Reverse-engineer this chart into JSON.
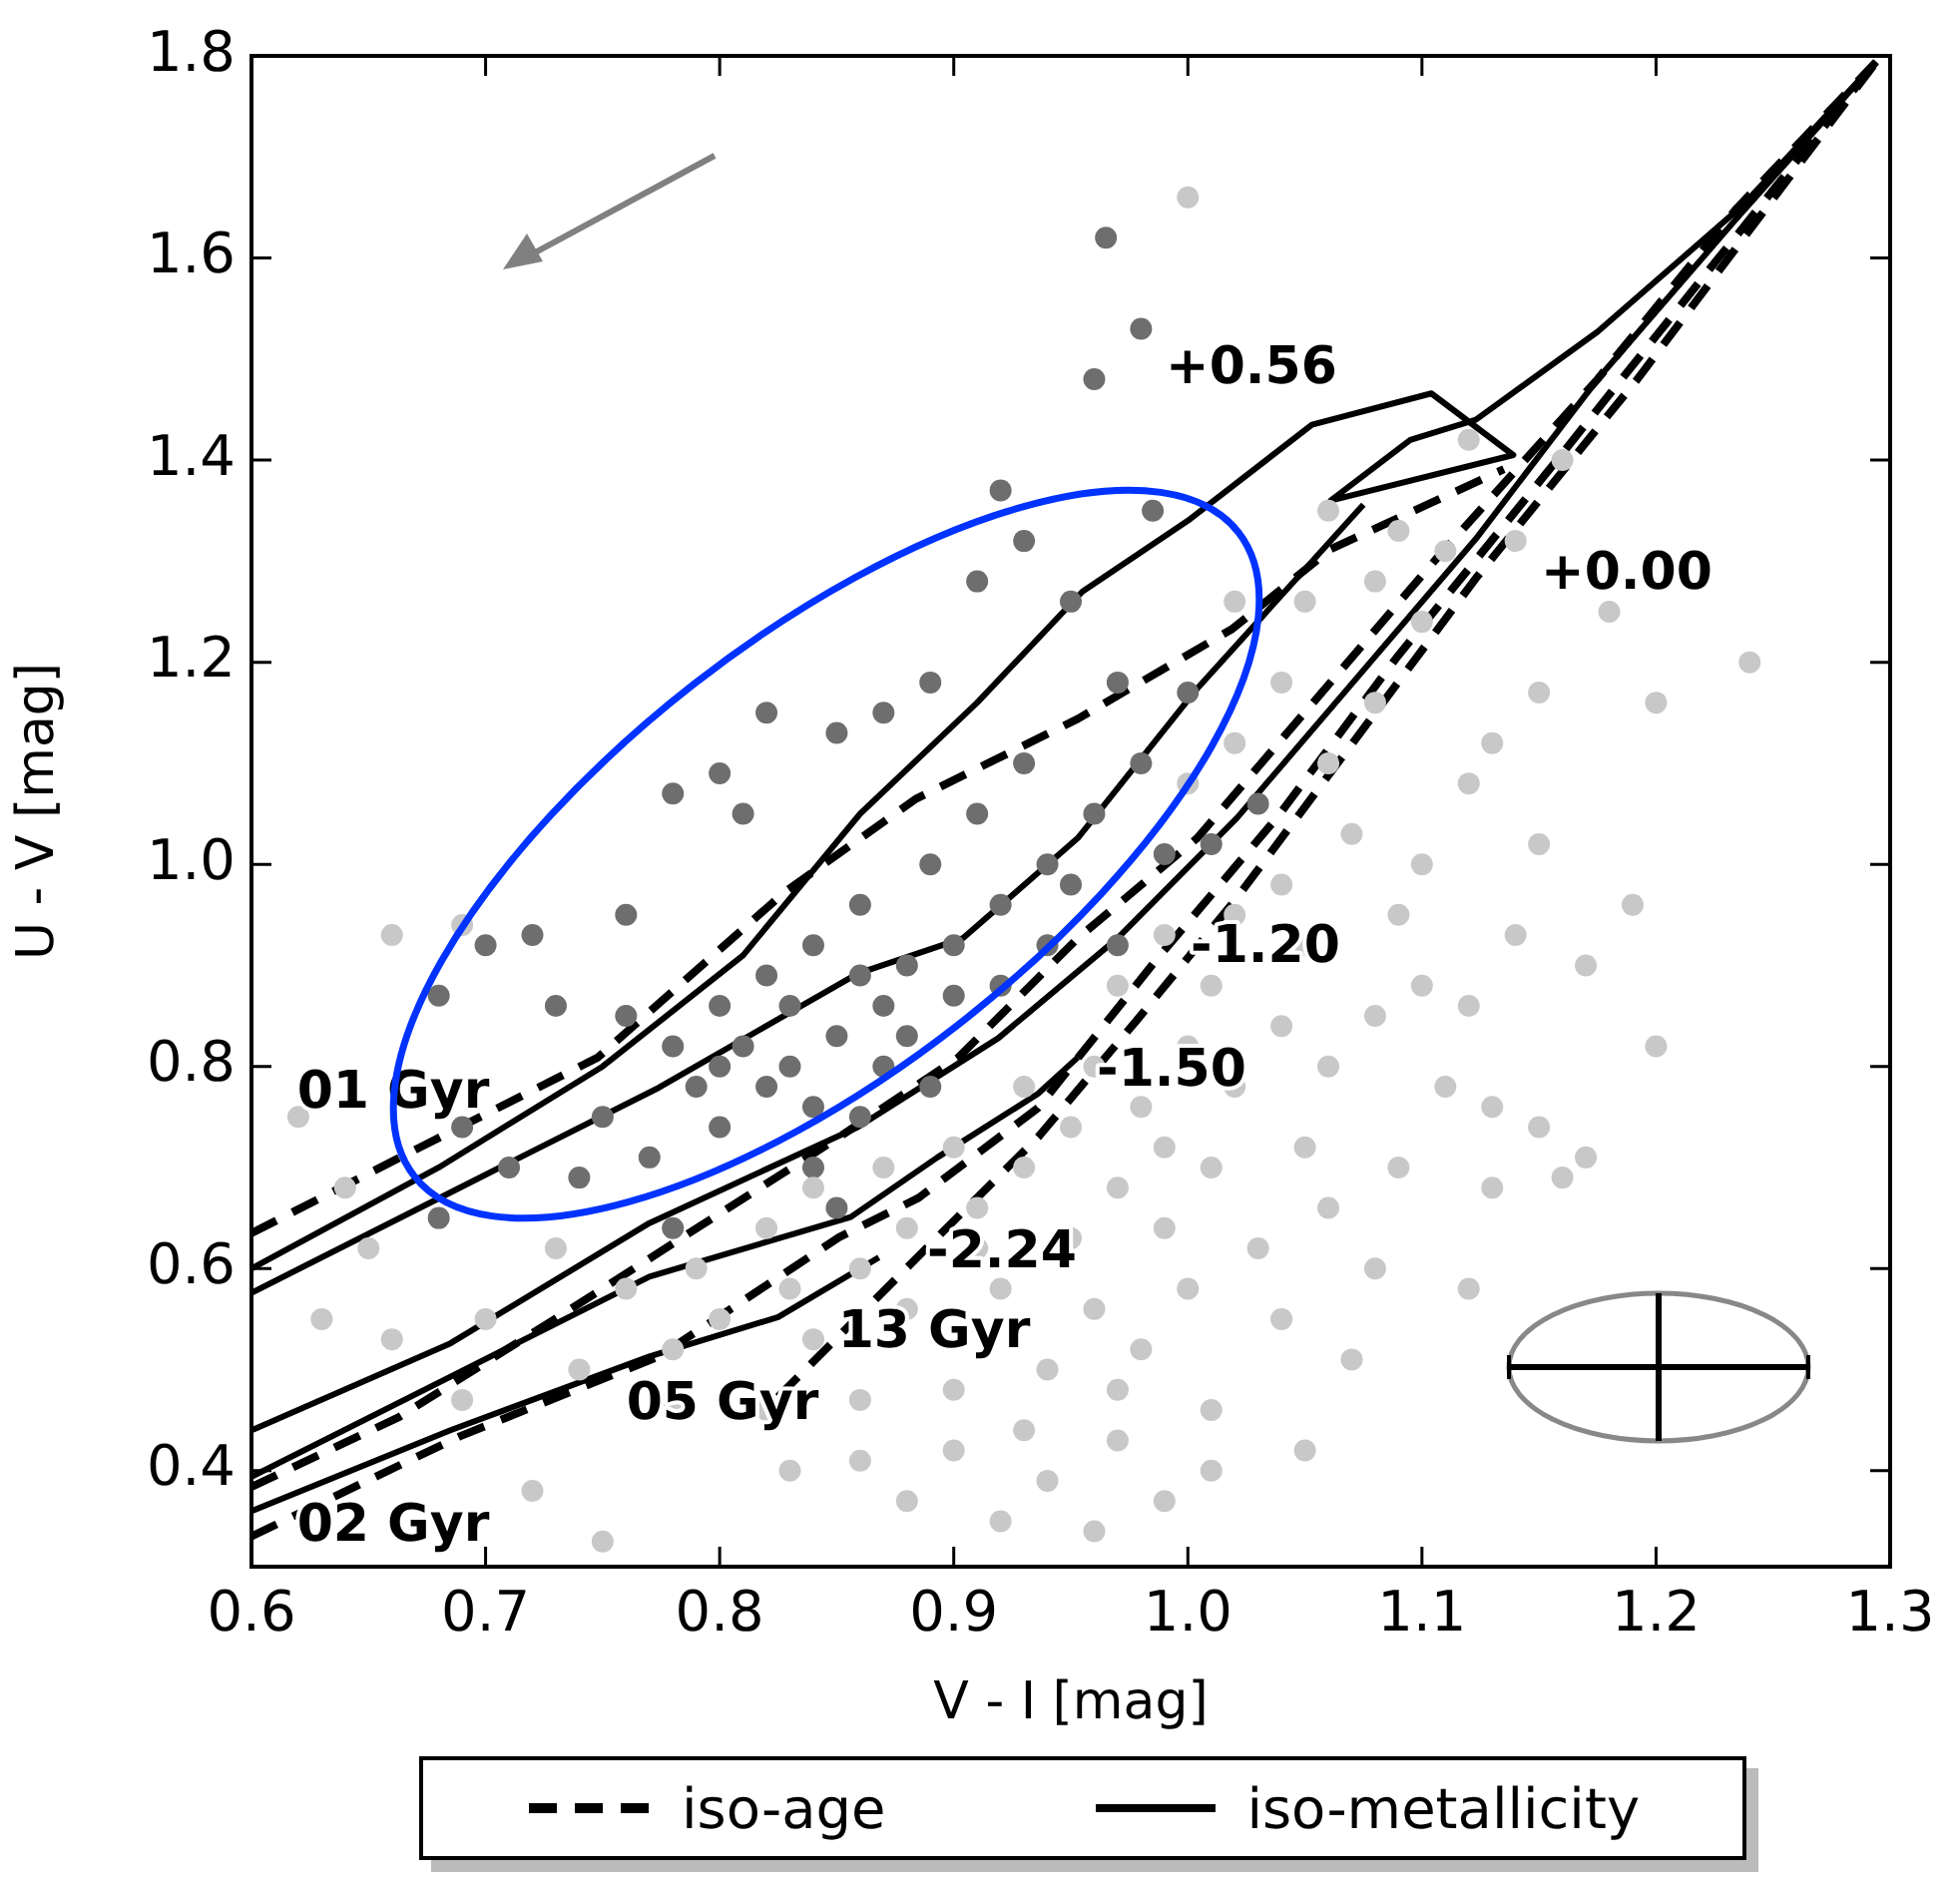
{
  "chart_data": {
    "type": "scatter",
    "xlabel": "V - I [mag]",
    "ylabel": "U - V [mag]",
    "xlim": [
      0.6,
      1.3
    ],
    "ylim": [
      0.305,
      1.8
    ],
    "xticks": [
      0.6,
      0.7,
      0.8,
      0.9,
      {
        "value": 1,
        "label": "1.0"
      },
      1.1,
      1.2,
      1.3
    ],
    "yticks": [
      0.4,
      0.6,
      0.8,
      {
        "value": 1,
        "label": "1.0"
      },
      1.2,
      1.4,
      1.6,
      1.8
    ],
    "grid": false,
    "legend": "bottom",
    "series": [
      {
        "color": "#c8c8c8",
        "marker": "circle",
        "x": [
          1.0,
          1.12,
          1.06,
          1.09,
          1.16,
          1.11,
          1.14,
          1.08,
          1.05,
          1.02,
          1.1,
          1.18,
          1.24,
          1.2,
          1.15,
          1.13,
          1.08,
          1.04,
          1.06,
          1.02,
          1.0,
          1.12,
          1.15,
          1.1,
          1.07,
          1.04,
          1.02,
          0.99,
          0.97,
          1.01,
          1.05,
          1.09,
          1.14,
          1.17,
          1.19,
          1.12,
          1.08,
          1.04,
          1.0,
          0.96,
          0.93,
          0.95,
          0.98,
          1.02,
          1.06,
          1.11,
          1.15,
          1.2,
          1.17,
          1.13,
          1.09,
          1.05,
          1.01,
          0.97,
          0.93,
          0.9,
          0.87,
          0.84,
          0.82,
          0.88,
          0.91,
          0.95,
          0.99,
          1.03,
          1.08,
          1.12,
          0.86,
          0.83,
          0.79,
          0.76,
          0.73,
          0.8,
          0.84,
          0.88,
          0.92,
          0.96,
          1.0,
          1.04,
          1.07,
          0.98,
          0.94,
          0.9,
          0.86,
          0.82,
          0.78,
          0.74,
          0.93,
          0.97,
          1.01,
          1.05,
          0.9,
          0.86,
          0.83,
          0.88,
          0.92,
          0.96,
          0.99,
          0.75,
          0.72,
          0.69,
          0.66,
          0.63,
          0.65,
          0.7,
          0.66,
          0.69,
          0.62,
          0.64,
          1.01,
          0.94,
          1.1,
          1.13,
          1.16,
          1.06,
          0.99,
          0.91,
          0.97,
          0.78
        ],
        "values": [
          1.66,
          1.42,
          1.35,
          1.33,
          1.4,
          1.31,
          1.32,
          1.28,
          1.26,
          1.26,
          1.24,
          1.25,
          1.2,
          1.16,
          1.17,
          1.12,
          1.16,
          1.18,
          1.1,
          1.12,
          1.08,
          1.08,
          1.02,
          1.0,
          1.03,
          0.98,
          0.95,
          0.93,
          0.88,
          0.88,
          0.92,
          0.95,
          0.93,
          0.9,
          0.96,
          0.86,
          0.85,
          0.84,
          0.82,
          0.8,
          0.78,
          0.74,
          0.76,
          0.78,
          0.8,
          0.78,
          0.74,
          0.82,
          0.71,
          0.68,
          0.7,
          0.72,
          0.7,
          0.68,
          0.7,
          0.72,
          0.7,
          0.68,
          0.64,
          0.64,
          0.66,
          0.63,
          0.64,
          0.62,
          0.6,
          0.58,
          0.6,
          0.58,
          0.6,
          0.58,
          0.62,
          0.55,
          0.53,
          0.56,
          0.58,
          0.56,
          0.58,
          0.55,
          0.51,
          0.52,
          0.5,
          0.48,
          0.47,
          0.46,
          0.47,
          0.5,
          0.44,
          0.43,
          0.46,
          0.42,
          0.42,
          0.41,
          0.4,
          0.37,
          0.35,
          0.34,
          0.37,
          0.33,
          0.38,
          0.47,
          0.53,
          0.55,
          0.62,
          0.55,
          0.93,
          0.94,
          0.75,
          0.68,
          0.4,
          0.39,
          0.88,
          0.76,
          0.69,
          0.66,
          0.72,
          0.62,
          0.48,
          0.52
        ]
      },
      {
        "color": "#6e6e6e",
        "marker": "circle",
        "x": [
          0.965,
          0.98,
          0.96,
          0.92,
          0.985,
          0.95,
          0.91,
          0.93,
          0.89,
          0.82,
          0.85,
          0.87,
          0.8,
          0.78,
          0.81,
          0.76,
          0.72,
          0.7,
          0.68,
          0.73,
          0.76,
          0.78,
          0.8,
          0.82,
          0.84,
          0.86,
          0.83,
          0.85,
          0.87,
          0.88,
          0.9,
          0.92,
          0.94,
          0.96,
          0.98,
          1.0,
          0.97,
          0.93,
          0.91,
          0.89,
          0.86,
          0.84,
          0.82,
          0.8,
          0.86,
          0.88,
          0.9,
          0.92,
          0.94,
          0.95,
          0.84,
          0.8,
          0.77,
          0.74,
          0.71,
          0.69,
          0.75,
          0.79,
          0.81,
          0.83,
          0.87,
          0.89,
          0.85,
          0.78,
          0.68,
          0.97,
          1.01,
          0.99,
          1.03
        ],
        "values": [
          1.62,
          1.53,
          1.48,
          1.37,
          1.35,
          1.26,
          1.28,
          1.32,
          1.18,
          1.15,
          1.13,
          1.15,
          1.09,
          1.07,
          1.05,
          0.95,
          0.93,
          0.92,
          0.87,
          0.86,
          0.85,
          0.82,
          0.8,
          0.78,
          0.76,
          0.75,
          0.8,
          0.83,
          0.86,
          0.9,
          0.92,
          0.96,
          1.0,
          1.05,
          1.1,
          1.17,
          1.18,
          1.1,
          1.05,
          1.0,
          0.96,
          0.92,
          0.89,
          0.86,
          0.89,
          0.83,
          0.87,
          0.88,
          0.92,
          0.98,
          0.7,
          0.74,
          0.71,
          0.69,
          0.7,
          0.74,
          0.75,
          0.78,
          0.82,
          0.86,
          0.8,
          0.78,
          0.66,
          0.64,
          0.65,
          0.92,
          1.02,
          1.01,
          1.06
        ]
      },
      {
        "type": "line",
        "name": "iso-age",
        "color": "#000000",
        "line_style": "dashed",
        "marker": "none",
        "x": [
          0.6,
          0.672,
          0.748,
          0.828,
          0.884,
          0.953,
          1.019,
          1.061,
          1.135
        ],
        "values": [
          0.635,
          0.72,
          0.809,
          0.973,
          1.065,
          1.144,
          1.233,
          1.312,
          1.391
        ]
      },
      {
        "type": "line",
        "color": "#000000",
        "line_style": "dashed",
        "marker": "none",
        "x": [
          0.6,
          0.663,
          0.731,
          0.791,
          0.851,
          0.902,
          0.953,
          1.004,
          1.055,
          1.106,
          1.175,
          1.234,
          1.294
        ],
        "values": [
          0.384,
          0.453,
          0.552,
          0.641,
          0.73,
          0.809,
          0.927,
          1.026,
          1.164,
          1.302,
          1.48,
          1.648,
          1.794
        ]
      },
      {
        "type": "line",
        "color": "#000000",
        "line_style": "dashed",
        "marker": "none",
        "x": [
          0.6,
          0.689,
          0.774,
          0.851,
          0.885,
          0.936,
          0.987,
          1.038,
          1.089,
          1.158,
          1.226,
          1.294
        ],
        "values": [
          0.335,
          0.434,
          0.513,
          0.631,
          0.67,
          0.759,
          0.907,
          1.046,
          1.204,
          1.401,
          1.598,
          1.794
        ]
      },
      {
        "type": "line",
        "color": "#000000",
        "line_style": "dashed",
        "marker": "none",
        "x": [
          0.825,
          0.859,
          0.893,
          0.936,
          0.979,
          1.021,
          1.072,
          1.123,
          1.192,
          1.294
        ],
        "values": [
          0.473,
          0.552,
          0.631,
          0.73,
          0.848,
          0.967,
          1.125,
          1.283,
          1.48,
          1.794
        ]
      },
      {
        "type": "line",
        "name": "iso-metallicity",
        "color": "#000000",
        "line_style": "solid",
        "marker": "none",
        "x": [
          0.6,
          0.68,
          0.75,
          0.81,
          0.86,
          0.91,
          0.955,
          1.0,
          1.053,
          1.104,
          1.139,
          1.061,
          1.095,
          1.123,
          1.175,
          1.237,
          1.294
        ],
        "values": [
          0.6,
          0.7,
          0.8,
          0.91,
          1.05,
          1.16,
          1.27,
          1.34,
          1.435,
          1.466,
          1.405,
          1.36,
          1.42,
          1.44,
          1.527,
          1.652,
          1.794
        ]
      },
      {
        "type": "line",
        "color": "#000000",
        "line_style": "solid",
        "marker": "none",
        "x": [
          0.6,
          0.689,
          0.774,
          0.859,
          0.904,
          0.953,
          1.004,
          1.075
        ],
        "values": [
          0.576,
          0.68,
          0.779,
          0.892,
          0.927,
          1.026,
          1.174,
          1.356
        ]
      },
      {
        "type": "line",
        "color": "#000000",
        "line_style": "solid",
        "marker": "none",
        "x": [
          0.6,
          0.685,
          0.77,
          0.859,
          0.919,
          0.97,
          1.021,
          1.072,
          1.123,
          1.175,
          1.234,
          1.294
        ],
        "values": [
          0.44,
          0.526,
          0.645,
          0.74,
          0.828,
          0.927,
          1.046,
          1.184,
          1.322,
          1.48,
          1.638,
          1.794
        ]
      },
      {
        "type": "line",
        "color": "#000000",
        "line_style": "solid",
        "marker": "none",
        "x": [
          0.6,
          0.685,
          0.77,
          0.856,
          0.893,
          0.936,
          0.953
        ],
        "values": [
          0.394,
          0.493,
          0.592,
          0.651,
          0.71,
          0.773,
          0.809
        ]
      },
      {
        "type": "line",
        "color": "#000000",
        "line_style": "solid",
        "marker": "none",
        "x": [
          0.6,
          0.685,
          0.77,
          0.825,
          0.868
        ],
        "values": [
          0.36,
          0.44,
          0.513,
          0.552,
          0.611
        ]
      }
    ],
    "annotations": [
      "+0.56",
      "+0.00",
      "-1.20",
      "-1.50",
      "-2.24",
      "13 Gyr",
      "05 Gyr",
      "02 Gyr",
      "01 Gyr"
    ]
  }
}
